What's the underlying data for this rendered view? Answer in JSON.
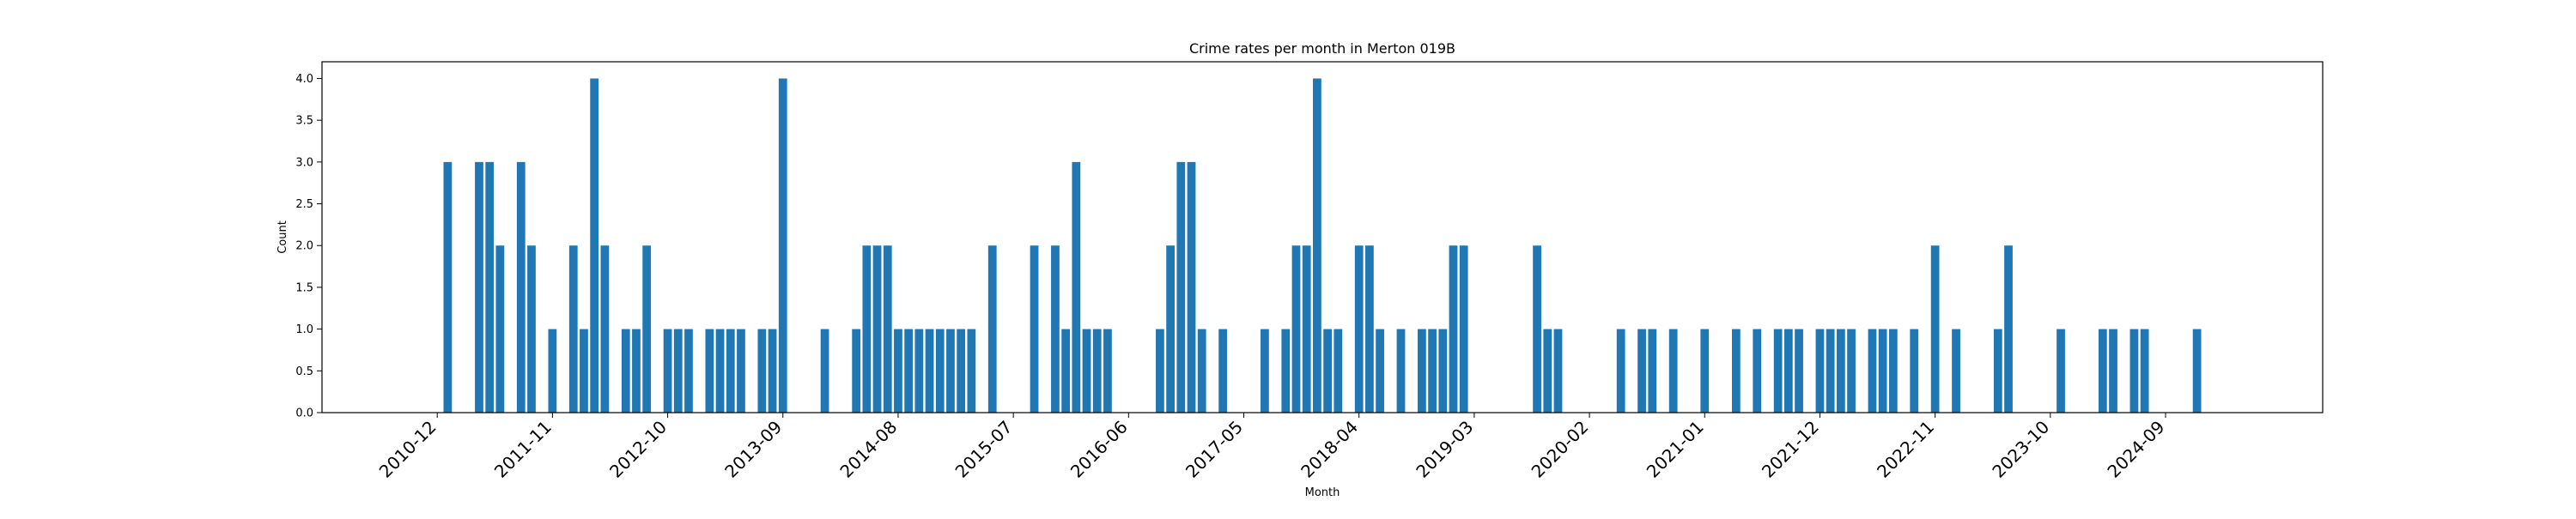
{
  "chart_data": {
    "type": "bar",
    "title": "Crime rates per month in Merton 019B",
    "xlabel": "Month",
    "ylabel": "Count",
    "ylim": [
      0,
      4.2
    ],
    "xlim": [
      "2010-01",
      "2025-12"
    ],
    "yticks": [
      "0.0",
      "0.5",
      "1.0",
      "1.5",
      "2.0",
      "2.5",
      "3.0",
      "3.5",
      "4.0"
    ],
    "xticks": [
      "2010-12",
      "2011-11",
      "2012-10",
      "2013-09",
      "2014-08",
      "2015-07",
      "2016-06",
      "2017-05",
      "2018-04",
      "2019-03",
      "2020-02",
      "2021-01",
      "2021-12",
      "2022-11",
      "2023-10",
      "2024-09"
    ],
    "grid": false,
    "legend": "none",
    "bar_color": "#1f77b4",
    "x": [
      "2011-01",
      "2011-04",
      "2011-05",
      "2011-06",
      "2011-08",
      "2011-09",
      "2011-11",
      "2012-01",
      "2012-02",
      "2012-03",
      "2012-04",
      "2012-06",
      "2012-07",
      "2012-08",
      "2012-10",
      "2012-11",
      "2012-12",
      "2013-02",
      "2013-03",
      "2013-04",
      "2013-05",
      "2013-07",
      "2013-08",
      "2013-09",
      "2014-01",
      "2014-04",
      "2014-05",
      "2014-06",
      "2014-07",
      "2014-08",
      "2014-09",
      "2014-10",
      "2014-11",
      "2014-12",
      "2015-01",
      "2015-02",
      "2015-03",
      "2015-05",
      "2015-09",
      "2015-11",
      "2015-12",
      "2016-01",
      "2016-02",
      "2016-03",
      "2016-04",
      "2016-09",
      "2016-10",
      "2016-11",
      "2016-12",
      "2017-01",
      "2017-03",
      "2017-07",
      "2017-09",
      "2017-10",
      "2017-11",
      "2017-12",
      "2018-01",
      "2018-02",
      "2018-04",
      "2018-05",
      "2018-06",
      "2018-08",
      "2018-10",
      "2018-11",
      "2018-12",
      "2019-01",
      "2019-02",
      "2019-09",
      "2019-10",
      "2019-11",
      "2020-05",
      "2020-07",
      "2020-08",
      "2020-10",
      "2021-01",
      "2021-04",
      "2021-06",
      "2021-08",
      "2021-09",
      "2021-10",
      "2021-12",
      "2022-01",
      "2022-02",
      "2022-03",
      "2022-05",
      "2022-06",
      "2022-07",
      "2022-09",
      "2022-11",
      "2023-01",
      "2023-05",
      "2023-06",
      "2023-11",
      "2024-03",
      "2024-04",
      "2024-06",
      "2024-07",
      "2024-12"
    ],
    "values": [
      3,
      3,
      3,
      2,
      3,
      2,
      1,
      2,
      1,
      4,
      2,
      1,
      1,
      2,
      1,
      1,
      1,
      1,
      1,
      1,
      1,
      1,
      1,
      4,
      1,
      1,
      2,
      2,
      2,
      1,
      1,
      1,
      1,
      1,
      1,
      1,
      1,
      2,
      2,
      2,
      1,
      3,
      1,
      1,
      1,
      1,
      2,
      3,
      3,
      1,
      1,
      1,
      1,
      2,
      2,
      4,
      1,
      1,
      2,
      2,
      1,
      1,
      1,
      1,
      1,
      2,
      2,
      2,
      1,
      1,
      1,
      1,
      1,
      1,
      1,
      1,
      1,
      1,
      1,
      1,
      1,
      1,
      1,
      1,
      1,
      1,
      1,
      1,
      2,
      1,
      1,
      2,
      1,
      1,
      1,
      1,
      1,
      1
    ]
  }
}
